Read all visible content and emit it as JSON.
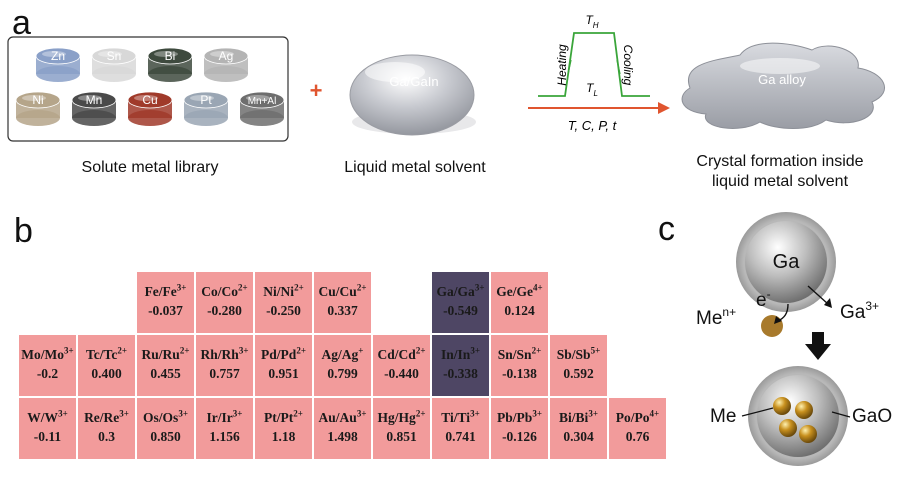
{
  "panel_a": {
    "letter": "a",
    "library": {
      "caption": "Solute metal library",
      "metals": [
        {
          "label": "Zn",
          "color": "#8aa0c8"
        },
        {
          "label": "Sn",
          "color": "#d8d8d8"
        },
        {
          "label": "Bi",
          "color": "#3e4a3e"
        },
        {
          "label": "Ag",
          "color": "#b4b4b4"
        },
        {
          "label": "Ni",
          "color": "#b5a58a"
        },
        {
          "label": "Mn",
          "color": "#4a4a4a"
        },
        {
          "label": "Cu",
          "color": "#a03a2a"
        },
        {
          "label": "Pt",
          "color": "#9aa6b4"
        },
        {
          "label": "Mn+Al",
          "color": "#6e6e6e"
        }
      ]
    },
    "plus": "+",
    "solvent": {
      "label": "Ga/GaIn",
      "caption": "Liquid metal solvent"
    },
    "process": {
      "t_high": "T",
      "t_high_sub": "H",
      "t_low": "T",
      "t_low_sub": "L",
      "heating": "Heating",
      "cooling": "Cooling",
      "params": "T, C, P, t"
    },
    "product": {
      "label": "Ga alloy",
      "caption_line1": "Crystal formation inside",
      "caption_line2": "liquid metal solvent"
    }
  },
  "panel_b": {
    "letter": "b",
    "cells": [
      {
        "el": "Fe/Fe",
        "ion": "3+",
        "value": "-0.037",
        "row": 0,
        "col": 2
      },
      {
        "el": "Co/Co",
        "ion": "2+",
        "value": "-0.280",
        "row": 0,
        "col": 3
      },
      {
        "el": "Ni/Ni",
        "ion": "2+",
        "value": "-0.250",
        "row": 0,
        "col": 4
      },
      {
        "el": "Cu/Cu",
        "ion": "2+",
        "value": "0.337",
        "row": 0,
        "col": 5
      },
      {
        "el": "Ga/Ga",
        "ion": "3+",
        "value": "-0.549",
        "row": 0,
        "col": 7,
        "highlight": true
      },
      {
        "el": "Ge/Ge",
        "ion": "4+",
        "value": "0.124",
        "row": 0,
        "col": 8
      },
      {
        "el": "Mo/Mo",
        "ion": "3+",
        "value": "-0.2",
        "row": 1,
        "col": 0
      },
      {
        "el": "Tc/Tc",
        "ion": "2+",
        "value": "0.400",
        "row": 1,
        "col": 1
      },
      {
        "el": "Ru/Ru",
        "ion": "2+",
        "value": "0.455",
        "row": 1,
        "col": 2
      },
      {
        "el": "Rh/Rh",
        "ion": "3+",
        "value": "0.757",
        "row": 1,
        "col": 3
      },
      {
        "el": "Pd/Pd",
        "ion": "2+",
        "value": "0.951",
        "row": 1,
        "col": 4
      },
      {
        "el": "Ag/Ag",
        "ion": "+",
        "value": "0.799",
        "row": 1,
        "col": 5
      },
      {
        "el": "Cd/Cd",
        "ion": "2+",
        "value": "-0.440",
        "row": 1,
        "col": 6
      },
      {
        "el": "In/In",
        "ion": "3+",
        "value": "-0.338",
        "row": 1,
        "col": 7,
        "highlight": true
      },
      {
        "el": "Sn/Sn",
        "ion": "2+",
        "value": "-0.138",
        "row": 1,
        "col": 8
      },
      {
        "el": "Sb/Sb",
        "ion": "5+",
        "value": "0.592",
        "row": 1,
        "col": 9
      },
      {
        "el": "W/W",
        "ion": "3+",
        "value": "-0.11",
        "row": 2,
        "col": 0
      },
      {
        "el": "Re/Re",
        "ion": "3+",
        "value": "0.3",
        "row": 2,
        "col": 1
      },
      {
        "el": "Os/Os",
        "ion": "3+",
        "value": "0.850",
        "row": 2,
        "col": 2
      },
      {
        "el": "Ir/Ir",
        "ion": "3+",
        "value": "1.156",
        "row": 2,
        "col": 3
      },
      {
        "el": "Pt/Pt",
        "ion": "2+",
        "value": "1.18",
        "row": 2,
        "col": 4
      },
      {
        "el": "Au/Au",
        "ion": "3+",
        "value": "1.498",
        "row": 2,
        "col": 5
      },
      {
        "el": "Hg/Hg",
        "ion": "2+",
        "value": "0.851",
        "row": 2,
        "col": 6
      },
      {
        "el": "Ti/Ti",
        "ion": "3+",
        "value": "0.741",
        "row": 2,
        "col": 7
      },
      {
        "el": "Pb/Pb",
        "ion": "3+",
        "value": "-0.126",
        "row": 2,
        "col": 8
      },
      {
        "el": "Bi/Bi",
        "ion": "3+",
        "value": "0.304",
        "row": 2,
        "col": 9
      },
      {
        "el": "Po/Po",
        "ion": "4+",
        "value": "0.76",
        "row": 2,
        "col": 10
      }
    ]
  },
  "panel_c": {
    "letter": "c",
    "ga": "Ga",
    "me_ion": "Me",
    "me_ion_sup": "n+",
    "electron": "e",
    "electron_sup": "-",
    "ga_ion": "Ga",
    "ga_ion_sup": "3+",
    "me": "Me",
    "gao": "GaO"
  }
}
